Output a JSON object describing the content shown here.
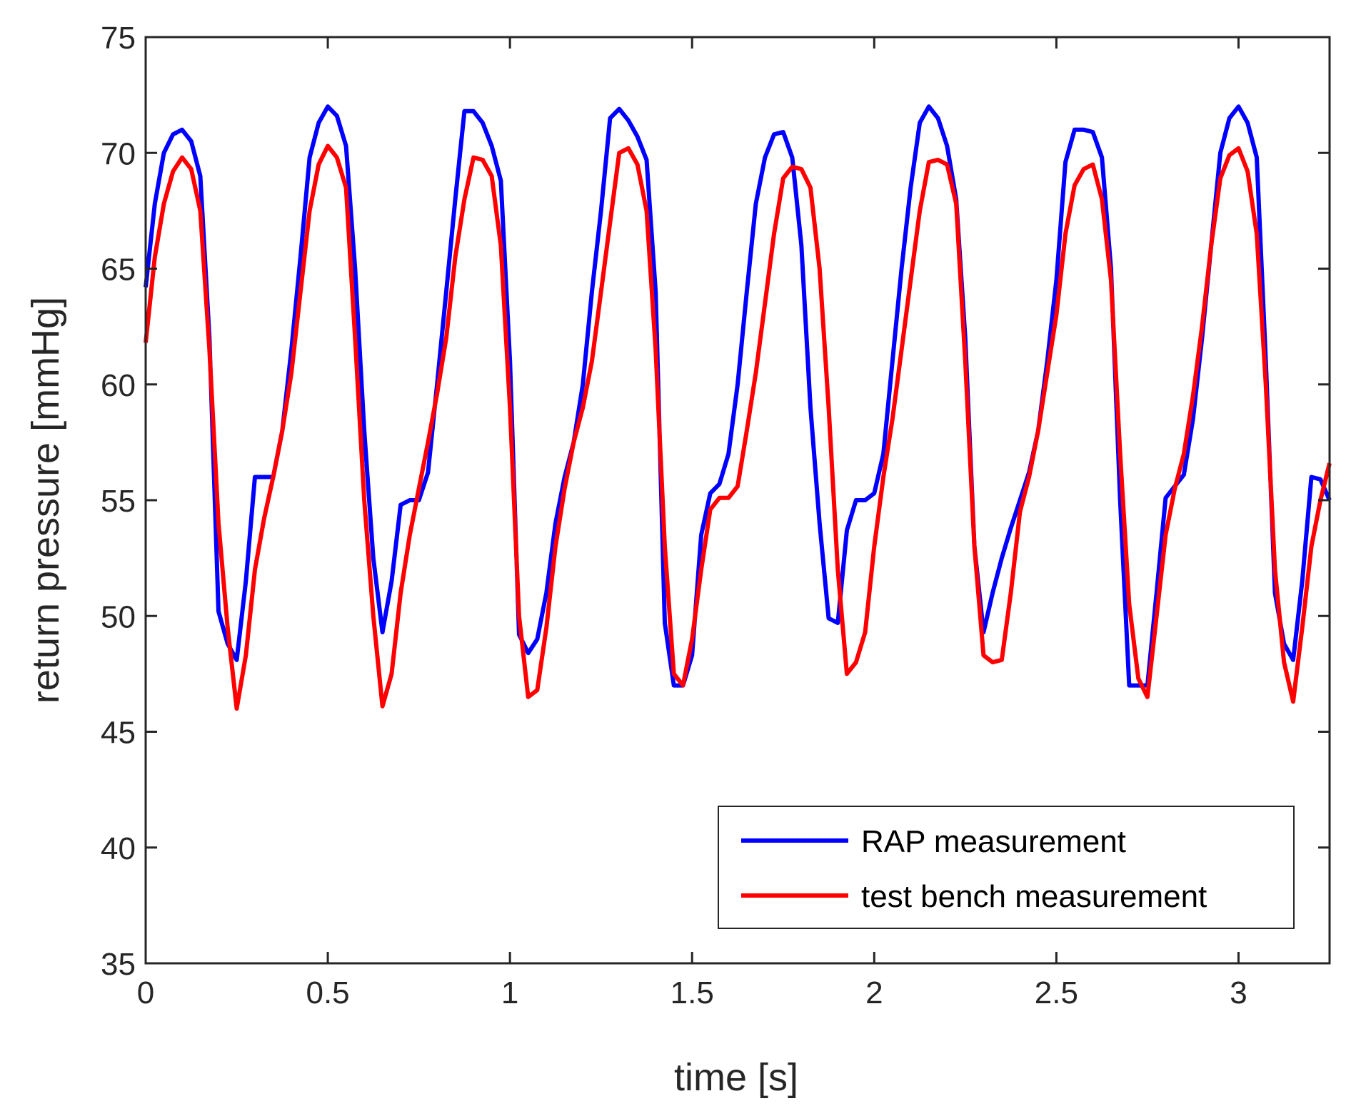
{
  "chart_data": {
    "type": "line",
    "title": "",
    "xlabel": "time  [s]",
    "ylabel": "return pressure  [mmHg]",
    "xlim": [
      0,
      3.25
    ],
    "ylim": [
      35,
      75
    ],
    "xticks": [
      0,
      0.5,
      1,
      1.5,
      2,
      2.5,
      3
    ],
    "xtick_labels": [
      "0",
      "0.5",
      "1",
      "1.5",
      "2",
      "2.5",
      "3"
    ],
    "yticks": [
      35,
      40,
      45,
      50,
      55,
      60,
      65,
      70,
      75
    ],
    "ytick_labels": [
      "35",
      "40",
      "45",
      "50",
      "55",
      "60",
      "65",
      "70",
      "75"
    ],
    "grid": false,
    "legend_position": "bottom-right",
    "series": [
      {
        "name": "RAP measurement",
        "color": "#0000ff",
        "x": [
          0,
          0.025,
          0.05,
          0.075,
          0.1,
          0.125,
          0.15,
          0.175,
          0.2,
          0.225,
          0.25,
          0.275,
          0.3,
          0.325,
          0.35,
          0.375,
          0.4,
          0.425,
          0.45,
          0.475,
          0.5,
          0.525,
          0.55,
          0.575,
          0.6,
          0.625,
          0.65,
          0.675,
          0.7,
          0.725,
          0.75,
          0.775,
          0.8,
          0.825,
          0.85,
          0.875,
          0.9,
          0.925,
          0.95,
          0.975,
          1.0,
          1.025,
          1.05,
          1.075,
          1.1,
          1.125,
          1.15,
          1.175,
          1.2,
          1.225,
          1.25,
          1.275,
          1.3,
          1.325,
          1.35,
          1.375,
          1.4,
          1.425,
          1.45,
          1.475,
          1.5,
          1.525,
          1.55,
          1.575,
          1.6,
          1.625,
          1.65,
          1.675,
          1.7,
          1.725,
          1.75,
          1.775,
          1.8,
          1.825,
          1.85,
          1.875,
          1.9,
          1.925,
          1.95,
          1.975,
          2.0,
          2.025,
          2.05,
          2.075,
          2.1,
          2.125,
          2.15,
          2.175,
          2.2,
          2.225,
          2.25,
          2.275,
          2.3,
          2.325,
          2.35,
          2.375,
          2.4,
          2.425,
          2.45,
          2.475,
          2.5,
          2.525,
          2.55,
          2.575,
          2.6,
          2.625,
          2.65,
          2.675,
          2.7,
          2.725,
          2.75,
          2.775,
          2.8,
          2.825,
          2.85,
          2.875,
          2.9,
          2.925,
          2.95,
          2.975,
          3.0,
          3.025,
          3.05,
          3.075,
          3.1,
          3.125,
          3.15,
          3.175,
          3.2,
          3.225,
          3.25
        ],
        "y": [
          64.2,
          67.8,
          70.0,
          70.8,
          71.0,
          70.5,
          69.0,
          62.0,
          50.2,
          48.8,
          48.1,
          51.5,
          56.0,
          56.0,
          56.0,
          58.0,
          61.5,
          65.5,
          69.8,
          71.3,
          72.0,
          71.6,
          70.3,
          65.0,
          58.0,
          52.5,
          49.3,
          51.5,
          54.8,
          55.0,
          55.0,
          56.2,
          60.0,
          64.0,
          68.0,
          71.8,
          71.8,
          71.3,
          70.3,
          68.8,
          61.0,
          49.2,
          48.4,
          49.0,
          51.0,
          54.0,
          56.0,
          57.5,
          60.0,
          64.0,
          67.5,
          71.5,
          71.9,
          71.4,
          70.7,
          69.7,
          64.0,
          49.7,
          47.0,
          47.0,
          48.3,
          53.5,
          55.3,
          55.7,
          57.0,
          60.0,
          64.0,
          67.8,
          69.8,
          70.8,
          70.9,
          69.8,
          66.0,
          59.0,
          54.0,
          49.9,
          49.7,
          53.7,
          55.0,
          55.0,
          55.3,
          57.0,
          61.0,
          65.0,
          68.5,
          71.3,
          72.0,
          71.5,
          70.3,
          68.0,
          62.0,
          53.0,
          49.3,
          51.0,
          52.5,
          53.8,
          55.0,
          56.2,
          58.0,
          61.0,
          64.5,
          69.6,
          71.0,
          71.0,
          70.9,
          69.8,
          65.0,
          55.0,
          47.0,
          47.0,
          47.0,
          51.0,
          55.1,
          55.6,
          56.1,
          58.5,
          62.0,
          66.0,
          70.0,
          71.5,
          72.0,
          71.3,
          69.8,
          61.0,
          51.0,
          48.8,
          48.1,
          51.5,
          56.0,
          55.9,
          55.0
        ]
      },
      {
        "name": "test bench measurement",
        "color": "#ff0000",
        "x": [
          0,
          0.025,
          0.05,
          0.075,
          0.1,
          0.125,
          0.15,
          0.175,
          0.2,
          0.225,
          0.25,
          0.275,
          0.3,
          0.325,
          0.35,
          0.375,
          0.4,
          0.425,
          0.45,
          0.475,
          0.5,
          0.525,
          0.55,
          0.575,
          0.6,
          0.625,
          0.65,
          0.675,
          0.7,
          0.725,
          0.75,
          0.775,
          0.8,
          0.825,
          0.85,
          0.875,
          0.9,
          0.925,
          0.95,
          0.975,
          1.0,
          1.025,
          1.05,
          1.075,
          1.1,
          1.125,
          1.15,
          1.175,
          1.2,
          1.225,
          1.25,
          1.275,
          1.3,
          1.325,
          1.35,
          1.375,
          1.4,
          1.425,
          1.45,
          1.475,
          1.5,
          1.525,
          1.55,
          1.575,
          1.6,
          1.625,
          1.65,
          1.675,
          1.7,
          1.725,
          1.75,
          1.775,
          1.8,
          1.825,
          1.85,
          1.875,
          1.9,
          1.925,
          1.95,
          1.975,
          2.0,
          2.025,
          2.05,
          2.075,
          2.1,
          2.125,
          2.15,
          2.175,
          2.2,
          2.225,
          2.25,
          2.275,
          2.3,
          2.325,
          2.35,
          2.375,
          2.4,
          2.425,
          2.45,
          2.475,
          2.5,
          2.525,
          2.55,
          2.575,
          2.6,
          2.625,
          2.65,
          2.675,
          2.7,
          2.725,
          2.75,
          2.775,
          2.8,
          2.825,
          2.85,
          2.875,
          2.9,
          2.925,
          2.95,
          2.975,
          3.0,
          3.025,
          3.05,
          3.075,
          3.1,
          3.125,
          3.15,
          3.175,
          3.2,
          3.225,
          3.25
        ],
        "y": [
          61.8,
          65.5,
          67.8,
          69.2,
          69.8,
          69.3,
          67.5,
          61.5,
          54.0,
          49.5,
          46.0,
          48.3,
          52.0,
          54.2,
          56.0,
          58.0,
          60.5,
          64.0,
          67.5,
          69.5,
          70.3,
          69.8,
          68.5,
          62.0,
          55.0,
          50.0,
          46.1,
          47.5,
          51.0,
          53.5,
          55.5,
          57.5,
          59.6,
          62.0,
          65.5,
          68.0,
          69.8,
          69.7,
          69.0,
          66.0,
          59.0,
          50.0,
          46.5,
          46.8,
          49.5,
          53.0,
          55.5,
          57.5,
          59.0,
          61.0,
          64.0,
          67.0,
          70.0,
          70.2,
          69.5,
          67.5,
          61.5,
          53.0,
          47.5,
          47.0,
          49.0,
          52.0,
          54.6,
          55.1,
          55.1,
          55.6,
          58.0,
          60.5,
          63.5,
          66.5,
          68.9,
          69.4,
          69.3,
          68.5,
          65.0,
          59.0,
          52.0,
          47.5,
          48.0,
          49.3,
          53.0,
          56.0,
          58.5,
          61.5,
          64.5,
          67.5,
          69.6,
          69.7,
          69.5,
          67.8,
          61.0,
          53.0,
          48.3,
          48.0,
          48.1,
          51.0,
          54.5,
          56.0,
          58.0,
          60.5,
          63.0,
          66.5,
          68.6,
          69.3,
          69.5,
          68.0,
          64.5,
          57.0,
          50.5,
          47.3,
          46.5,
          50.0,
          53.5,
          55.5,
          57.0,
          59.5,
          62.5,
          66.0,
          68.9,
          69.9,
          70.2,
          69.2,
          66.5,
          60.0,
          52.0,
          48.0,
          46.3,
          49.5,
          53.0,
          55.0,
          56.6
        ]
      }
    ]
  }
}
